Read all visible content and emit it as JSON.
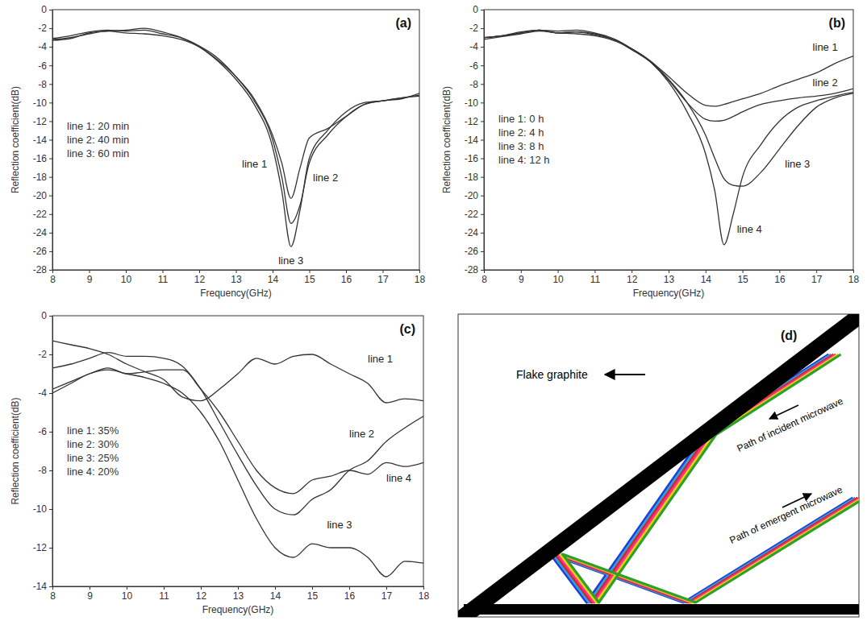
{
  "chart_data": [
    {
      "type": "line",
      "title": "(a)",
      "x_label": "Frequency(GHz)",
      "y_label": "Reflection coefficient(dB)",
      "x": [
        8,
        8.5,
        9,
        9.5,
        10,
        10.5,
        11,
        11.5,
        12,
        12.5,
        13,
        13.5,
        14,
        14.25,
        14.5,
        14.75,
        15,
        15.5,
        16,
        16.5,
        17,
        17.5,
        18
      ],
      "series": [
        {
          "name": "line 1: 20 min",
          "color": "#333333",
          "values": [
            -3.2,
            -3.0,
            -2.6,
            -2.3,
            -2.5,
            -2.6,
            -2.8,
            -3.2,
            -4.0,
            -5.4,
            -7.2,
            -9.6,
            -13.5,
            -16.5,
            -20.3,
            -17.0,
            -13.8,
            -12.8,
            -11.5,
            -10.2,
            -9.8,
            -9.5,
            -9.3
          ]
        },
        {
          "name": "line 2: 40 min",
          "color": "#333333",
          "values": [
            -3.1,
            -2.8,
            -2.4,
            -2.2,
            -2.3,
            -2.2,
            -2.6,
            -3.0,
            -3.9,
            -5.2,
            -7.2,
            -9.8,
            -14.0,
            -18.0,
            -23.0,
            -21.0,
            -16.5,
            -13.5,
            -11.5,
            -10.2,
            -9.8,
            -9.6,
            -9.0
          ]
        },
        {
          "name": "line 3: 60 min",
          "color": "#333333",
          "values": [
            -3.3,
            -3.1,
            -2.5,
            -2.3,
            -2.2,
            -2.0,
            -2.4,
            -3.0,
            -4.0,
            -5.5,
            -7.5,
            -10.2,
            -14.8,
            -19.5,
            -25.5,
            -21.5,
            -16.0,
            -13.0,
            -11.0,
            -10.0,
            -9.8,
            -9.5,
            -9.2
          ]
        }
      ],
      "annotations": [
        {
          "text": "line 1",
          "x": 13.85,
          "y": -17
        },
        {
          "text": "line 2",
          "x": 15.1,
          "y": -18.5
        },
        {
          "text": "line 3",
          "x": 14.5,
          "y": -27.4
        }
      ],
      "xlim": [
        8,
        18
      ],
      "ylim": [
        -28,
        0
      ],
      "xticks": [
        8,
        9,
        10,
        11,
        12,
        13,
        14,
        15,
        16,
        17,
        18
      ],
      "yticks": [
        -28,
        -26,
        -24,
        -22,
        -20,
        -18,
        -16,
        -14,
        -12,
        -10,
        -8,
        -6,
        -4,
        -2,
        0
      ],
      "grid": false,
      "legend": "left"
    },
    {
      "type": "line",
      "title": "(b)",
      "x_label": "Frequency(GHz)",
      "y_label": "Reflection coefficient(dB)",
      "x": [
        8,
        8.5,
        9,
        9.5,
        10,
        10.5,
        11,
        11.5,
        12,
        12.5,
        13,
        13.5,
        14,
        14.25,
        14.5,
        14.75,
        15,
        15.5,
        16,
        16.5,
        17,
        17.5,
        18
      ],
      "series": [
        {
          "name": "line 1: 0 h",
          "color": "#333333",
          "values": [
            -3.0,
            -2.8,
            -2.5,
            -2.2,
            -2.5,
            -2.4,
            -2.7,
            -3.2,
            -4.2,
            -5.5,
            -7.2,
            -9.0,
            -10.3,
            -10.4,
            -10.2,
            -9.9,
            -9.6,
            -9.0,
            -8.2,
            -7.5,
            -6.8,
            -5.8,
            -5.0
          ]
        },
        {
          "name": "line 2: 4 h",
          "color": "#333333",
          "values": [
            -3.0,
            -2.8,
            -2.5,
            -2.2,
            -2.5,
            -2.4,
            -2.6,
            -3.2,
            -4.3,
            -5.6,
            -7.6,
            -10.0,
            -11.8,
            -12.0,
            -11.9,
            -11.5,
            -11.0,
            -10.2,
            -9.8,
            -9.5,
            -9.3,
            -9.0,
            -8.5
          ]
        },
        {
          "name": "line 3: 8 h",
          "color": "#333333",
          "values": [
            -3.2,
            -2.9,
            -2.6,
            -2.3,
            -2.5,
            -2.6,
            -2.8,
            -3.3,
            -4.2,
            -5.5,
            -7.5,
            -10.0,
            -13.5,
            -16.0,
            -18.2,
            -18.9,
            -19.0,
            -17.5,
            -15.0,
            -12.5,
            -10.5,
            -9.5,
            -9.0
          ]
        },
        {
          "name": "line 4: 12 h",
          "color": "#333333",
          "values": [
            -3.0,
            -2.8,
            -2.4,
            -2.2,
            -2.3,
            -2.2,
            -2.5,
            -3.1,
            -4.2,
            -5.6,
            -7.8,
            -11.0,
            -15.5,
            -19.5,
            -25.3,
            -22.0,
            -18.0,
            -14.5,
            -12.0,
            -10.5,
            -9.8,
            -9.3,
            -8.9
          ]
        }
      ],
      "annotations": [
        {
          "text": "line 1",
          "x": 16.9,
          "y": -4.4
        },
        {
          "text": "line 2",
          "x": 16.9,
          "y": -8.2
        },
        {
          "text": "line 3",
          "x": 16.15,
          "y": -17.0
        },
        {
          "text": "line 4",
          "x": 14.85,
          "y": -24
        }
      ],
      "xlim": [
        8,
        18
      ],
      "ylim": [
        -28,
        0
      ],
      "xticks": [
        8,
        9,
        10,
        11,
        12,
        13,
        14,
        15,
        16,
        17,
        18
      ],
      "yticks": [
        -28,
        -26,
        -24,
        -22,
        -20,
        -18,
        -16,
        -14,
        -12,
        -10,
        -8,
        -6,
        -4,
        -2,
        0
      ],
      "grid": false,
      "legend": "left"
    },
    {
      "type": "line",
      "title": "(c)",
      "x_label": "Frequency(GHz)",
      "y_label": "Reflection coefficient(dB)",
      "x": [
        8,
        8.5,
        9,
        9.5,
        10,
        10.5,
        11,
        11.5,
        12,
        12.5,
        13,
        13.5,
        14,
        14.5,
        15,
        15.5,
        16,
        16.5,
        17,
        17.5,
        18
      ],
      "series": [
        {
          "name": "line 1: 35%",
          "color": "#333333",
          "values": [
            -1.3,
            -1.5,
            -1.7,
            -2.0,
            -2.5,
            -2.9,
            -3.3,
            -4.2,
            -4.4,
            -3.8,
            -3.0,
            -2.2,
            -2.5,
            -2.1,
            -2.0,
            -2.5,
            -3.0,
            -3.5,
            -4.5,
            -4.3,
            -4.4
          ]
        },
        {
          "name": "line 2: 30%",
          "color": "#333333",
          "values": [
            -2.7,
            -2.5,
            -2.2,
            -1.9,
            -2.1,
            -2.1,
            -2.2,
            -2.6,
            -3.8,
            -5.5,
            -7.2,
            -8.8,
            -10.0,
            -10.3,
            -9.5,
            -9.0,
            -8.0,
            -7.5,
            -6.5,
            -5.8,
            -5.2
          ]
        },
        {
          "name": "line 3: 25%",
          "color": "#333333",
          "values": [
            -4.0,
            -3.5,
            -3.0,
            -2.8,
            -3.0,
            -3.2,
            -3.5,
            -4.0,
            -5.0,
            -6.5,
            -8.5,
            -10.5,
            -12.0,
            -12.5,
            -11.8,
            -12.0,
            -12.0,
            -12.5,
            -13.5,
            -12.7,
            -12.8
          ]
        },
        {
          "name": "line 4: 20%",
          "color": "#333333",
          "values": [
            -3.8,
            -3.4,
            -3.0,
            -2.7,
            -3.0,
            -2.9,
            -2.8,
            -2.8,
            -3.8,
            -5.0,
            -6.5,
            -8.0,
            -8.9,
            -9.2,
            -8.5,
            -8.3,
            -8.0,
            -8.2,
            -7.6,
            -7.8,
            -7.6
          ]
        }
      ],
      "annotations": [
        {
          "text": "line 1",
          "x": 16.5,
          "y": -2.4
        },
        {
          "text": "line 2",
          "x": 16.0,
          "y": -6.3
        },
        {
          "text": "line 3",
          "x": 15.4,
          "y": -11.0
        },
        {
          "text": "line 4",
          "x": 17.0,
          "y": -8.6
        }
      ],
      "xlim": [
        8,
        18
      ],
      "ylim": [
        -14,
        0
      ],
      "xticks": [
        8,
        9,
        10,
        11,
        12,
        13,
        14,
        15,
        16,
        17,
        18
      ],
      "yticks": [
        -14,
        -12,
        -10,
        -8,
        -6,
        -4,
        -2,
        0
      ],
      "grid": false,
      "legend": "left"
    }
  ],
  "diagram": {
    "title": "(d)",
    "graphite_label": "Flake graphite",
    "incident_label": "Path of incident microwave",
    "emergent_label": "Path of emergent microwave"
  }
}
